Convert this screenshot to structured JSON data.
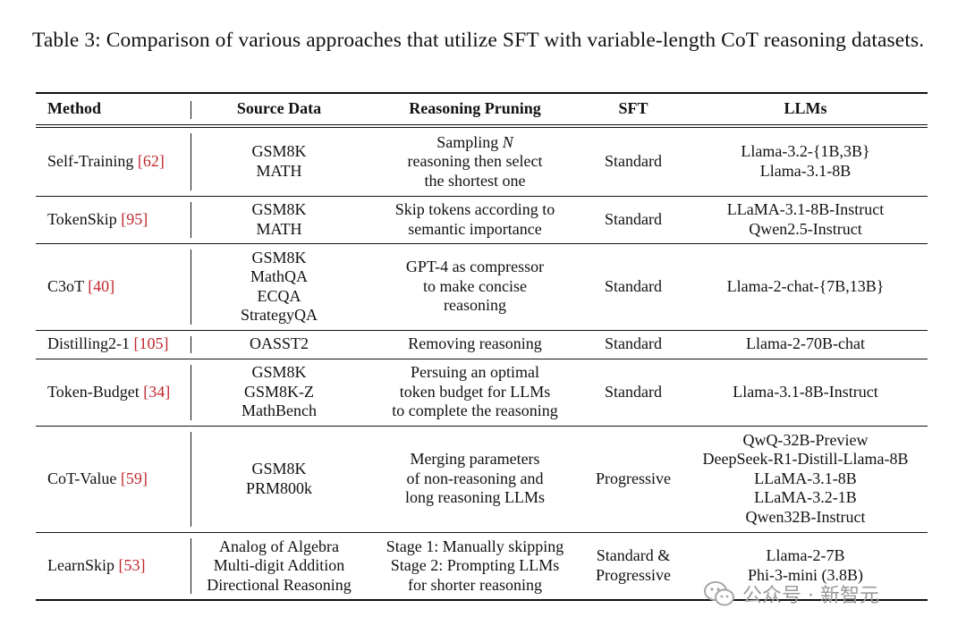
{
  "caption": "Table 3: Comparison of various approaches that utilize SFT with variable-length CoT reasoning datasets.",
  "headers": {
    "method": "Method",
    "source": "Source Data",
    "pruning": "Reasoning Pruning",
    "sft": "SFT",
    "llms": "LLMs"
  },
  "rows": [
    {
      "method": "Self-Training",
      "ref": "[62]",
      "source": [
        "GSM8K",
        "MATH"
      ],
      "pruning": [
        "Sampling N",
        "reasoning then select",
        "the shortest one"
      ],
      "sft": [
        "Standard"
      ],
      "llms": [
        "Llama-3.2-{1B,3B}",
        "Llama-3.1-8B"
      ],
      "height": 78
    },
    {
      "method": "TokenSkip",
      "ref": "[95]",
      "source": [
        "GSM8K",
        "MATH"
      ],
      "pruning": [
        "Skip tokens according to",
        "semantic importance"
      ],
      "sft": [
        "Standard"
      ],
      "llms": [
        "LLaMA-3.1-8B-Instruct",
        "Qwen2.5-Instruct"
      ],
      "height": 53
    },
    {
      "method": "C3oT",
      "ref": "[40]",
      "source": [
        "GSM8K",
        "MathQA",
        "ECQA",
        "StrategyQA"
      ],
      "pruning": [
        "GPT-4 as compressor",
        "to make concise",
        "reasoning"
      ],
      "sft": [
        "Standard"
      ],
      "llms": [
        "Llama-2-chat-{7B,13B}"
      ],
      "height": 97
    },
    {
      "method": "Distilling2-1",
      "ref": "[105]",
      "source": [
        "OASST2"
      ],
      "pruning": [
        "Removing reasoning"
      ],
      "sft": [
        "Standard"
      ],
      "llms": [
        "Llama-2-70B-chat"
      ],
      "height": 32
    },
    {
      "method": "Token-Budget",
      "ref": "[34]",
      "source": [
        "GSM8K",
        "GSM8K-Z",
        "MathBench"
      ],
      "pruning": [
        "Persuing an optimal",
        "token budget for LLMs",
        "to complete the reasoning"
      ],
      "sft": [
        "Standard"
      ],
      "llms": [
        "Llama-3.1-8B-Instruct"
      ],
      "height": 75
    },
    {
      "method": "CoT-Value",
      "ref": "[59]",
      "source": [
        "GSM8K",
        "PRM800k"
      ],
      "pruning": [
        "Merging parameters",
        "of non-reasoning and",
        "long reasoning LLMs"
      ],
      "sft": [
        "Progressive"
      ],
      "llms": [
        "QwQ-32B-Preview",
        "DeepSeek-R1-Distill-Llama-8B",
        "LLaMA-3.1-8B",
        "LLaMA-3.2-1B",
        "Qwen32B-Instruct"
      ],
      "height": 119
    },
    {
      "method": "LearnSkip",
      "ref": "[53]",
      "source": [
        "Analog of Algebra",
        "Multi-digit Addition",
        "Directional Reasoning"
      ],
      "pruning": [
        "Stage 1: Manually skipping",
        "Stage 2: Prompting LLMs",
        "for shorter reasoning"
      ],
      "sft": [
        "Standard &",
        "Progressive"
      ],
      "llms": [
        "Llama-2-7B",
        "Phi-3-mini (3.8B)"
      ],
      "height": 76
    }
  ],
  "watermark": {
    "icon": "wechat-icon",
    "text": "公众号 · 新智元"
  }
}
